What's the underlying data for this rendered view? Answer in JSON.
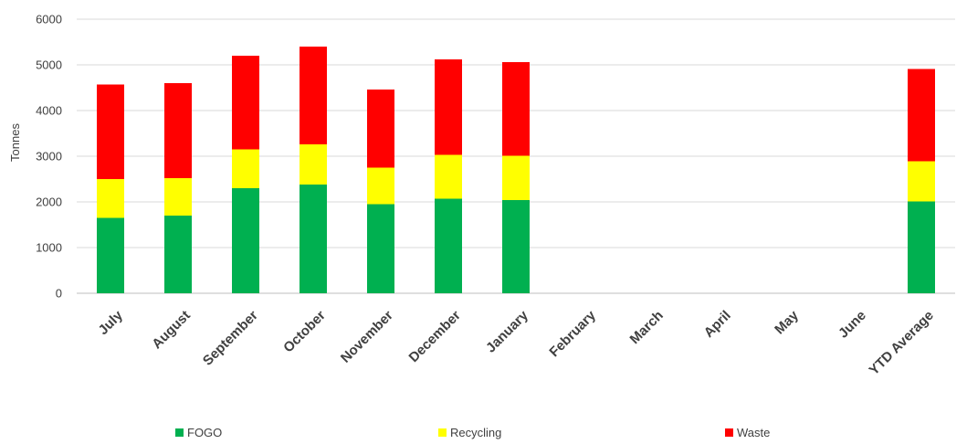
{
  "chart_data": {
    "type": "bar",
    "stacked": true,
    "title": "",
    "xlabel": "",
    "ylabel": "Tonnes",
    "ylim": [
      0,
      6000
    ],
    "yticks": [
      0,
      1000,
      2000,
      3000,
      4000,
      5000,
      6000
    ],
    "grid": true,
    "legend_position": "bottom",
    "categories": [
      "July",
      "August",
      "September",
      "October",
      "November",
      "December",
      "January",
      "February",
      "March",
      "April",
      "May",
      "June",
      "YTD Average"
    ],
    "series": [
      {
        "name": "FOGO",
        "color": "#00b050",
        "values": [
          1650,
          1700,
          2300,
          2380,
          1950,
          2070,
          2040,
          null,
          null,
          null,
          null,
          null,
          2010
        ]
      },
      {
        "name": "Recycling",
        "color": "#ffff00",
        "values": [
          850,
          820,
          850,
          880,
          800,
          960,
          970,
          null,
          null,
          null,
          null,
          null,
          880
        ]
      },
      {
        "name": "Waste",
        "color": "#ff0000",
        "values": [
          2070,
          2080,
          2050,
          2140,
          1710,
          2090,
          2050,
          null,
          null,
          null,
          null,
          null,
          2020
        ]
      }
    ]
  }
}
